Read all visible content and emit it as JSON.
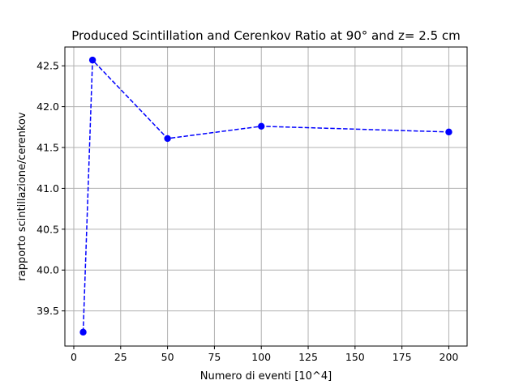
{
  "chart_data": {
    "type": "line",
    "title": "Produced Scintillation and Cerenkov Ratio at 90° and z= 2.5 cm",
    "xlabel": "Numero di eventi [10^4]",
    "ylabel": "rapporto scintillazione/cerenkov",
    "xlim": [
      -4.75,
      209.75
    ],
    "ylim": [
      39.07,
      42.73
    ],
    "xticks": [
      0,
      25,
      50,
      75,
      100,
      125,
      150,
      175,
      200
    ],
    "xtick_labels": [
      "0",
      "25",
      "50",
      "75",
      "100",
      "125",
      "150",
      "175",
      "200"
    ],
    "yticks": [
      39.5,
      40.0,
      40.5,
      41.0,
      41.5,
      42.0,
      42.5
    ],
    "ytick_labels": [
      "39.5",
      "40.0",
      "40.5",
      "41.0",
      "41.5",
      "42.0",
      "42.5"
    ],
    "grid": true,
    "legend": "none",
    "series": [
      {
        "color": "#0000ff",
        "line_style": "dashed",
        "marker": "circle",
        "x": [
          5,
          10,
          50,
          100,
          200
        ],
        "y": [
          39.24,
          42.57,
          41.61,
          41.76,
          41.69
        ]
      }
    ]
  }
}
